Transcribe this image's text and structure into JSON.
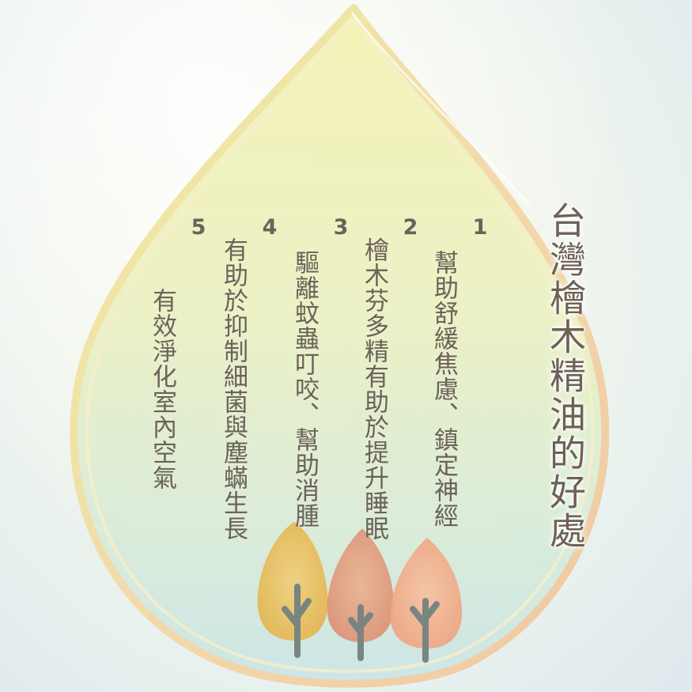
{
  "title": "台灣檜木精油的好處",
  "benefits": [
    {
      "number": "1",
      "text": "幫助舒緩焦慮、鎮定神經"
    },
    {
      "number": "2",
      "text": "檜木芬多精有助於提升睡眠"
    },
    {
      "number": "3",
      "text": "驅離蚊蟲叮咬、幫助消腫"
    },
    {
      "number": "4",
      "text": "有助於抑制細菌與塵蟎生長"
    },
    {
      "number": "5",
      "text": "有效淨化室內空氣"
    }
  ],
  "colors": {
    "text": "#6b625a",
    "drop_fill_top": "#f2f3b8",
    "drop_fill_bottom": "#cfe6e4",
    "tree_yellow": "#e8b64d",
    "tree_salmon": "#e29a7a",
    "tree_peach": "#f0ad86",
    "trunk": "#7a8580"
  },
  "icons": [
    "water-drop-shape",
    "tree-illustration"
  ]
}
